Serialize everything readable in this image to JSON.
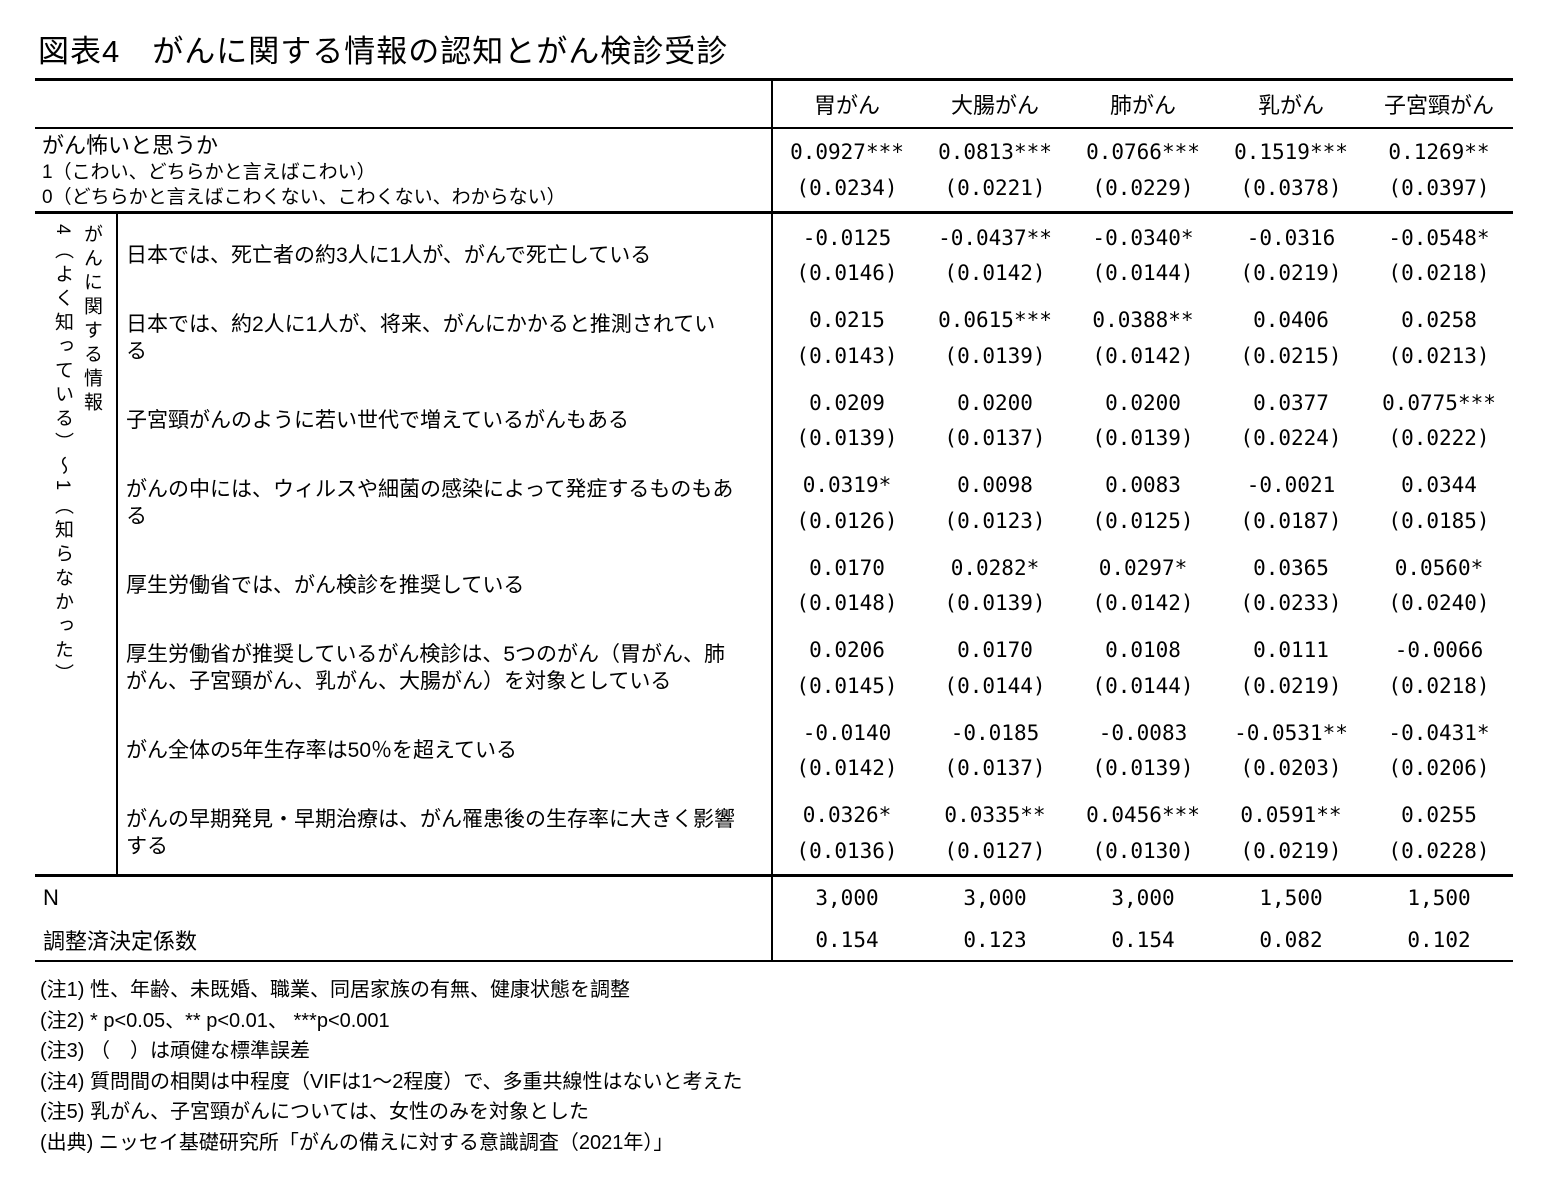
{
  "title": "図表4　がんに関する情報の認知とがん検診受診",
  "table": {
    "column_headers": [
      "胃がん",
      "大腸がん",
      "肺がん",
      "乳がん",
      "子宮頸がん"
    ],
    "fear": {
      "label": "がん怖いと思うか",
      "sub1": "1（こわい、どちらかと言えばこわい）",
      "sub2": "0（どちらかと言えばこわくない、こわくない、わからない）",
      "coefs": [
        "0.0927***",
        "0.0813***",
        "0.0766***",
        "0.1519***",
        "0.1269**"
      ],
      "ses": [
        "(0.0234)",
        "(0.0221)",
        "(0.0229)",
        "(0.0378)",
        "(0.0397)"
      ]
    },
    "knowledge": {
      "vertical_label_1": "がんに関する情報",
      "vertical_label_2": "4（よく知っている）～1（知らなかった）",
      "rows": [
        {
          "label": "日本では、死亡者の約3人に1人が、がんで死亡している",
          "coefs": [
            "-0.0125",
            "-0.0437**",
            "-0.0340*",
            "-0.0316",
            "-0.0548*"
          ],
          "ses": [
            "(0.0146)",
            "(0.0142)",
            "(0.0144)",
            "(0.0219)",
            "(0.0218)"
          ]
        },
        {
          "label": "日本では、約2人に1人が、将来、がんにかかると推測されている",
          "coefs": [
            "0.0215",
            "0.0615***",
            "0.0388**",
            "0.0406",
            "0.0258"
          ],
          "ses": [
            "(0.0143)",
            "(0.0139)",
            "(0.0142)",
            "(0.0215)",
            "(0.0213)"
          ]
        },
        {
          "label": "子宮頸がんのように若い世代で増えているがんもある",
          "coefs": [
            "0.0209",
            "0.0200",
            "0.0200",
            "0.0377",
            "0.0775***"
          ],
          "ses": [
            "(0.0139)",
            "(0.0137)",
            "(0.0139)",
            "(0.0224)",
            "(0.0222)"
          ]
        },
        {
          "label": "がんの中には、ウィルスや細菌の感染によって発症するものもある",
          "coefs": [
            "0.0319*",
            "0.0098",
            "0.0083",
            "-0.0021",
            "0.0344"
          ],
          "ses": [
            "(0.0126)",
            "(0.0123)",
            "(0.0125)",
            "(0.0187)",
            "(0.0185)"
          ]
        },
        {
          "label": "厚生労働省では、がん検診を推奨している",
          "coefs": [
            "0.0170",
            "0.0282*",
            "0.0297*",
            "0.0365",
            "0.0560*"
          ],
          "ses": [
            "(0.0148)",
            "(0.0139)",
            "(0.0142)",
            "(0.0233)",
            "(0.0240)"
          ]
        },
        {
          "label": "厚生労働省が推奨しているがん検診は、5つのがん（胃がん、肺がん、子宮頸がん、乳がん、大腸がん）を対象としている",
          "coefs": [
            "0.0206",
            "0.0170",
            "0.0108",
            "0.0111",
            "-0.0066"
          ],
          "ses": [
            "(0.0145)",
            "(0.0144)",
            "(0.0144)",
            "(0.0219)",
            "(0.0218)"
          ]
        },
        {
          "label": "がん全体の5年生存率は50％を超えている",
          "coefs": [
            "-0.0140",
            "-0.0185",
            "-0.0083",
            "-0.0531**",
            "-0.0431*"
          ],
          "ses": [
            "(0.0142)",
            "(0.0137)",
            "(0.0139)",
            "(0.0203)",
            "(0.0206)"
          ]
        },
        {
          "label": "がんの早期発見・早期治療は、がん罹患後の生存率に大きく影響する",
          "coefs": [
            "0.0326*",
            "0.0335**",
            "0.0456***",
            "0.0591**",
            "0.0255"
          ],
          "ses": [
            "(0.0136)",
            "(0.0127)",
            "(0.0130)",
            "(0.0219)",
            "(0.0228)"
          ]
        }
      ]
    },
    "n_row": {
      "label": "N",
      "values": [
        "3,000",
        "3,000",
        "3,000",
        "1,500",
        "1,500"
      ]
    },
    "r2_row": {
      "label": "調整済決定係数",
      "values": [
        "0.154",
        "0.123",
        "0.154",
        "0.082",
        "0.102"
      ]
    }
  },
  "notes": [
    "(注1) 性、年齢、未既婚、職業、同居家族の有無、健康状態を調整",
    "(注2) * p<0.05、** p<0.01、 ***p<0.001",
    "(注3) （　）は頑健な標準誤差",
    "(注4) 質問間の相関は中程度（VIFは1～2程度）で、多重共線性はないと考えた",
    "(注5) 乳がん、子宮頸がんについては、女性のみを対象とした",
    "(出典) ニッセイ基礎研究所「がんの備えに対する意識調査（2021年）」"
  ]
}
